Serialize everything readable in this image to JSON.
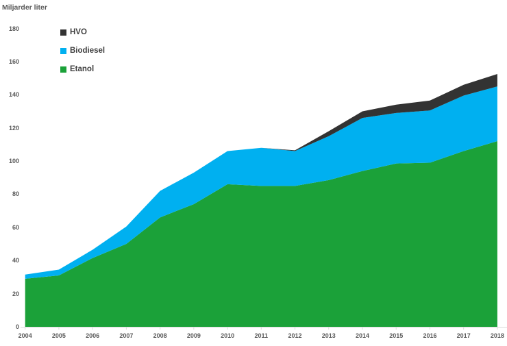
{
  "page": {
    "title": "Miljarder liter"
  },
  "chart_data": {
    "type": "area",
    "stacked": true,
    "title": "Miljarder liter",
    "ylabel": "Miljarder liter",
    "xlabel": "",
    "ylim": [
      0,
      180
    ],
    "y_ticks": [
      0,
      20,
      40,
      60,
      80,
      100,
      120,
      140,
      160,
      180
    ],
    "grid": false,
    "legend_position": "top-left",
    "legend_order": [
      "HVO",
      "Biodiesel",
      "Etanol"
    ],
    "categories": [
      "2004",
      "2005",
      "2006",
      "2007",
      "2008",
      "2009",
      "2010",
      "2011",
      "2012",
      "2013",
      "2014",
      "2015",
      "2016",
      "2017",
      "2018"
    ],
    "series": [
      {
        "name": "Etanol",
        "color": "#1ba139",
        "values": [
          29,
          31,
          41.5,
          50,
          66,
          74,
          86,
          85,
          85,
          88.5,
          94,
          98.5,
          99,
          106,
          112
        ]
      },
      {
        "name": "Biodiesel",
        "color": "#00b0f0",
        "values": [
          2.5,
          3.5,
          5,
          10.5,
          16,
          19,
          20,
          23,
          21,
          26.5,
          32,
          30.5,
          31.5,
          33.5,
          33
        ]
      },
      {
        "name": "HVO",
        "color": "#333333",
        "values": [
          0,
          0,
          0,
          0,
          0,
          0,
          0,
          0,
          0.5,
          3,
          4,
          5,
          6,
          6.5,
          7.5
        ]
      }
    ],
    "totals": [
      31.5,
      34.5,
      46.5,
      60.5,
      82,
      93,
      106,
      108,
      106.5,
      118,
      130,
      134,
      136.5,
      146,
      152.5
    ]
  },
  "axes": {
    "text_color": "#595959",
    "line_color": "#d9d9d9"
  }
}
